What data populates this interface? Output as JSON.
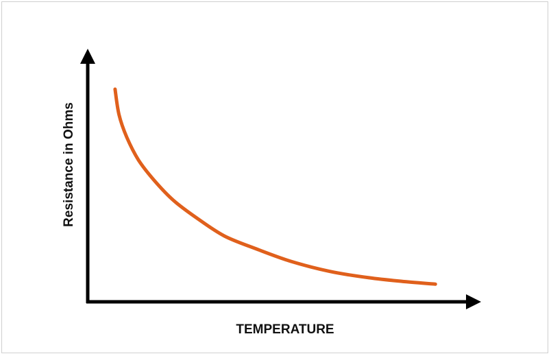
{
  "chart_data": {
    "type": "line",
    "title": "",
    "xlabel": "TEMPERATURE",
    "ylabel": "Resistance in Ohms",
    "xlim": [
      0,
      1
    ],
    "ylim": [
      0,
      1
    ],
    "grid": false,
    "legend": "none",
    "series": [
      {
        "values": [
          [
            0.07,
            0.84
          ],
          [
            0.08,
            0.74
          ],
          [
            0.1,
            0.65
          ],
          [
            0.13,
            0.56
          ],
          [
            0.17,
            0.48
          ],
          [
            0.22,
            0.4
          ],
          [
            0.28,
            0.33
          ],
          [
            0.35,
            0.26
          ],
          [
            0.43,
            0.21
          ],
          [
            0.52,
            0.16
          ],
          [
            0.62,
            0.12
          ],
          [
            0.72,
            0.095
          ],
          [
            0.81,
            0.08
          ],
          [
            0.89,
            0.07
          ]
        ],
        "color": "#e0601c"
      }
    ],
    "axis_color": "#000000"
  }
}
